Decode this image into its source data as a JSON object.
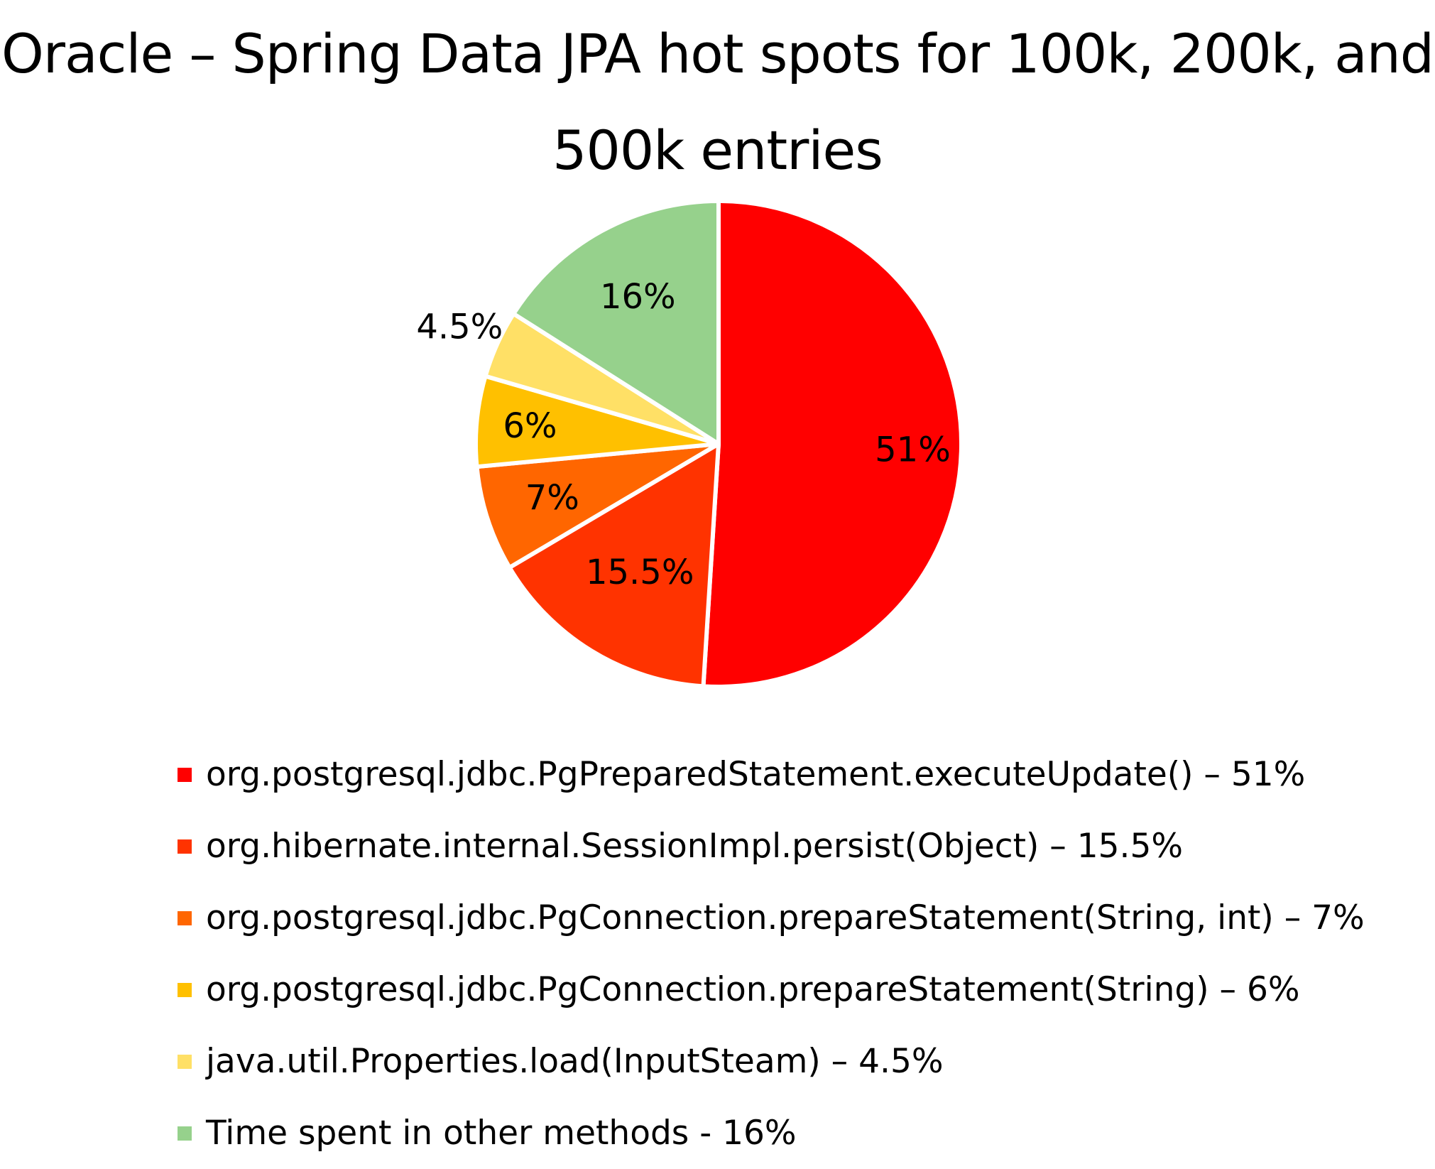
{
  "chart_data": {
    "type": "pie",
    "title": "Oracle – Spring Data JPA hot spots for 100k, 200k, and 500k entries",
    "slices": [
      {
        "label": "org.postgresql.jdbc.PgPreparedStatement.executeUpdate() – 51%",
        "value": 51,
        "data_label": "51%",
        "color": "#FF0000"
      },
      {
        "label": "org.hibernate.internal.SessionImpl.persist(Object) – 15.5%",
        "value": 15.5,
        "data_label": "15.5%",
        "color": "#FF3300"
      },
      {
        "label": "org.postgresql.jdbc.PgConnection.prepareStatement(String, int) – 7%",
        "value": 7,
        "data_label": "7%",
        "color": "#FF6600"
      },
      {
        "label": "org.postgresql.jdbc.PgConnection.prepareStatement(String) – 6%",
        "value": 6,
        "data_label": "6%",
        "color": "#FFC000"
      },
      {
        "label": "java.util.Properties.load(InputSteam) – 4.5%",
        "value": 4.5,
        "data_label": "4.5%",
        "color": "#FFE066"
      },
      {
        "label": "Time spent in other methods - 16%",
        "value": 16,
        "data_label": "16%",
        "color": "#96D18C"
      }
    ],
    "legend_position": "bottom",
    "start_angle": "12 o'clock",
    "direction": "clockwise"
  }
}
